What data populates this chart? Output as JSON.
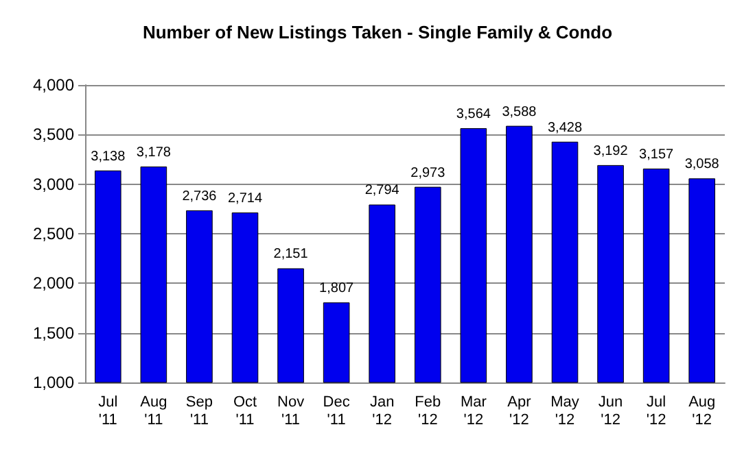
{
  "chart_data": {
    "type": "bar",
    "title": "Number of New Listings Taken - Single Family & Condo",
    "categories": [
      "Jul\n'11",
      "Aug\n'11",
      "Sep\n'11",
      "Oct\n'11",
      "Nov\n'11",
      "Dec\n'11",
      "Jan\n'12",
      "Feb\n'12",
      "Mar\n'12",
      "Apr\n'12",
      "May\n'12",
      "Jun\n'12",
      "Jul\n'12",
      "Aug\n'12"
    ],
    "values": [
      3138,
      3178,
      2736,
      2714,
      2151,
      1807,
      2794,
      2973,
      3564,
      3588,
      3428,
      3192,
      3157,
      3058
    ],
    "value_labels": [
      "3,138",
      "3,178",
      "2,736",
      "2,714",
      "2,151",
      "1,807",
      "2,794",
      "2,973",
      "3,564",
      "3,588",
      "3,428",
      "3,192",
      "3,157",
      "3,058"
    ],
    "color": "#0000ee",
    "ylim": [
      1000,
      4000
    ],
    "yticks": [
      {
        "value": 1000,
        "label": "1,000"
      },
      {
        "value": 1500,
        "label": "1,500"
      },
      {
        "value": 2000,
        "label": "2,000"
      },
      {
        "value": 2500,
        "label": "2,500"
      },
      {
        "value": 3000,
        "label": "3,000"
      },
      {
        "value": 3500,
        "label": "3,500"
      },
      {
        "value": 4000,
        "label": "4,000"
      }
    ],
    "grid": "y"
  }
}
